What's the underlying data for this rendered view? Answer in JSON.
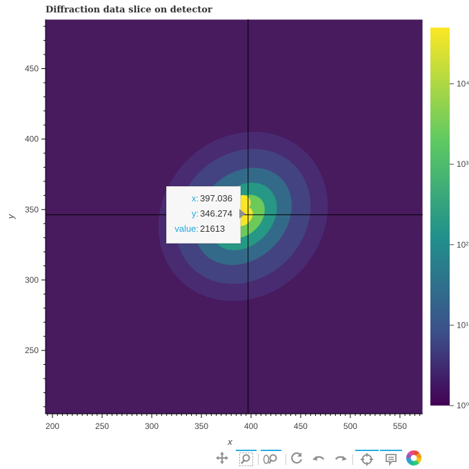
{
  "title": "Diffraction data slice on detector",
  "chart_data": {
    "type": "heatmap",
    "title": "Diffraction data slice on detector",
    "xlabel": "x",
    "ylabel": "y",
    "xlim": [
      193,
      573
    ],
    "ylim": [
      205,
      485
    ],
    "x_ticks": [
      200,
      250,
      300,
      350,
      400,
      450,
      500,
      550
    ],
    "y_ticks": [
      250,
      300,
      350,
      400,
      450
    ],
    "colorbar": {
      "scale": "log",
      "range": [
        1,
        50000
      ],
      "ticks": [
        {
          "value": 1,
          "label": "10⁰"
        },
        {
          "value": 10,
          "label": "10¹"
        },
        {
          "value": 100,
          "label": "10²"
        },
        {
          "value": 1000,
          "label": "10³"
        },
        {
          "value": 10000,
          "label": "10⁴"
        }
      ],
      "colormap": "viridis",
      "colors": [
        "#440154",
        "#3b528b",
        "#21918c",
        "#5ec962",
        "#fde725"
      ]
    },
    "background_value": 1,
    "peak": {
      "x": 392,
      "y": 350,
      "value": 50000
    },
    "crosshair": {
      "x": 397.036,
      "y": 346.274
    }
  },
  "tooltip": {
    "x_key": "x:",
    "x_value": "397.036",
    "y_key": "y:",
    "y_value": "346.274",
    "value_key": "value:",
    "value_value": "21613"
  },
  "toolbar": {
    "tools": [
      "pan-icon",
      "box-zoom-icon",
      "wheel-zoom-icon",
      "reset-icon",
      "undo-icon",
      "redo-icon",
      "crosshair-icon",
      "hover-icon",
      "bokeh-logo-icon"
    ]
  }
}
